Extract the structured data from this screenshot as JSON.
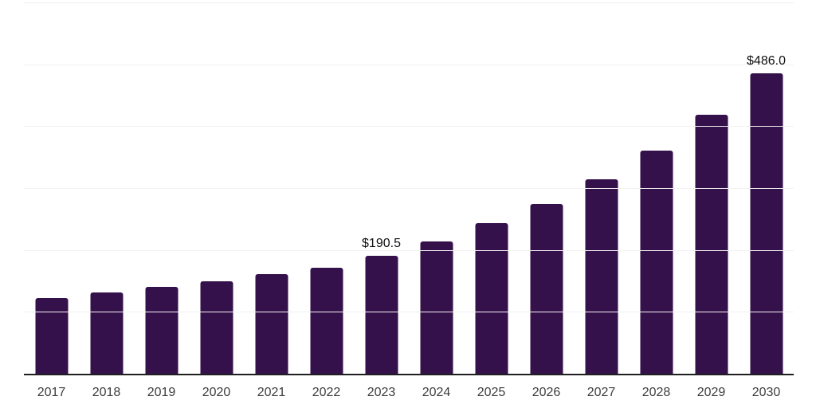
{
  "chart_data": {
    "type": "bar",
    "title": "",
    "xlabel": "",
    "ylabel": "",
    "categories": [
      "2017",
      "2018",
      "2019",
      "2020",
      "2021",
      "2022",
      "2023",
      "2024",
      "2025",
      "2026",
      "2027",
      "2028",
      "2029",
      "2030"
    ],
    "values": [
      122.2,
      131.5,
      140.1,
      150.0,
      160.6,
      171.3,
      190.5,
      214.0,
      244.0,
      274.7,
      314.4,
      360.5,
      418.2,
      486.0
    ],
    "point_labels": {
      "2023": "$190.5",
      "2030": "$486.0"
    },
    "value_prefix": "$",
    "ylim": [
      0,
      600
    ],
    "gridline_step": 100,
    "grid": true,
    "legend": "none",
    "y_axis_labels_visible": false,
    "colors": {
      "bar": "#35114B",
      "grid": "#f1f1f1",
      "axis": "#1f1f1f",
      "tick_text": "#3d3d3d",
      "label_text": "#111111"
    }
  }
}
